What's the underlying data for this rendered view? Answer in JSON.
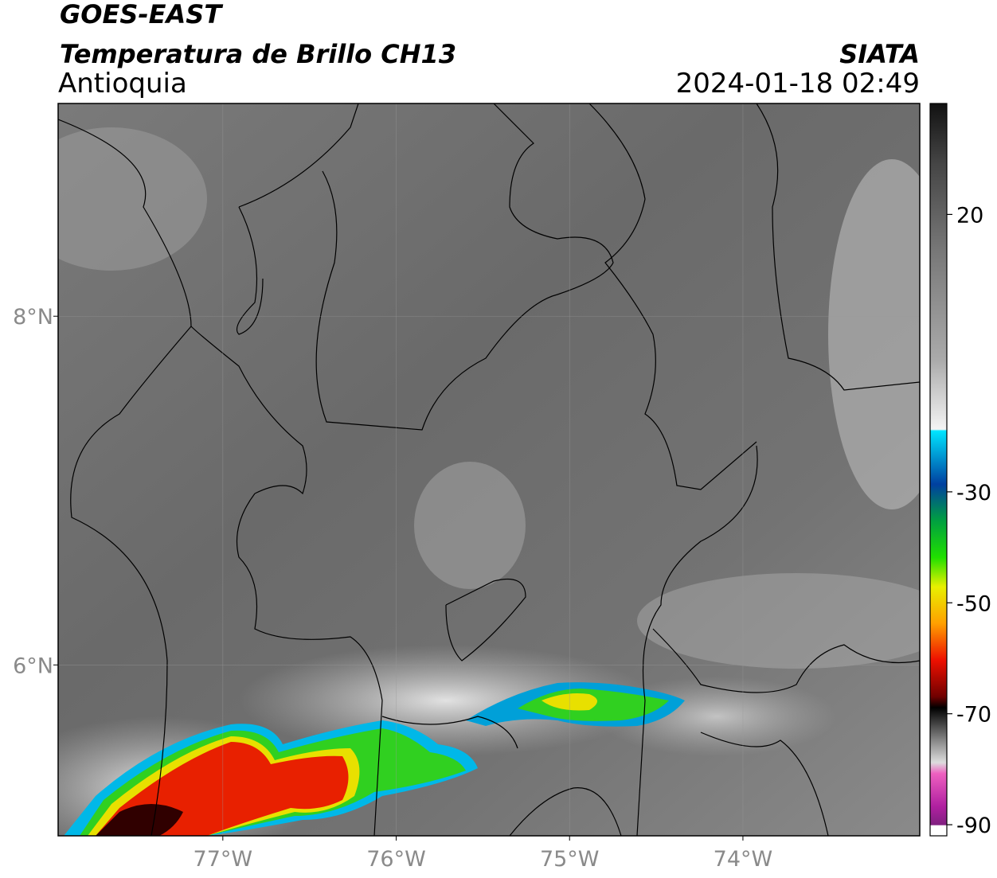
{
  "map": {
    "title": "GOES-EAST",
    "subtitle": "Temperatura de Brillo CH13",
    "source": "SIATA",
    "region": "Antioquia",
    "datetime": "2024-01-18 02:49",
    "xlim": [
      -77.95,
      -72.98
    ],
    "ylim": [
      5.02,
      9.22
    ],
    "xticks": [
      {
        "value": -77,
        "label": "77°W"
      },
      {
        "value": -76,
        "label": "76°W"
      },
      {
        "value": -75,
        "label": "75°W"
      },
      {
        "value": -74,
        "label": "74°W"
      }
    ],
    "yticks": [
      {
        "value": 6,
        "label": "6°N"
      },
      {
        "value": 8,
        "label": "8°N"
      }
    ],
    "grid": true,
    "colorbar": {
      "clim": [
        -92,
        40
      ],
      "ticks": [
        20,
        -30,
        -50,
        -70,
        -90
      ]
    }
  }
}
